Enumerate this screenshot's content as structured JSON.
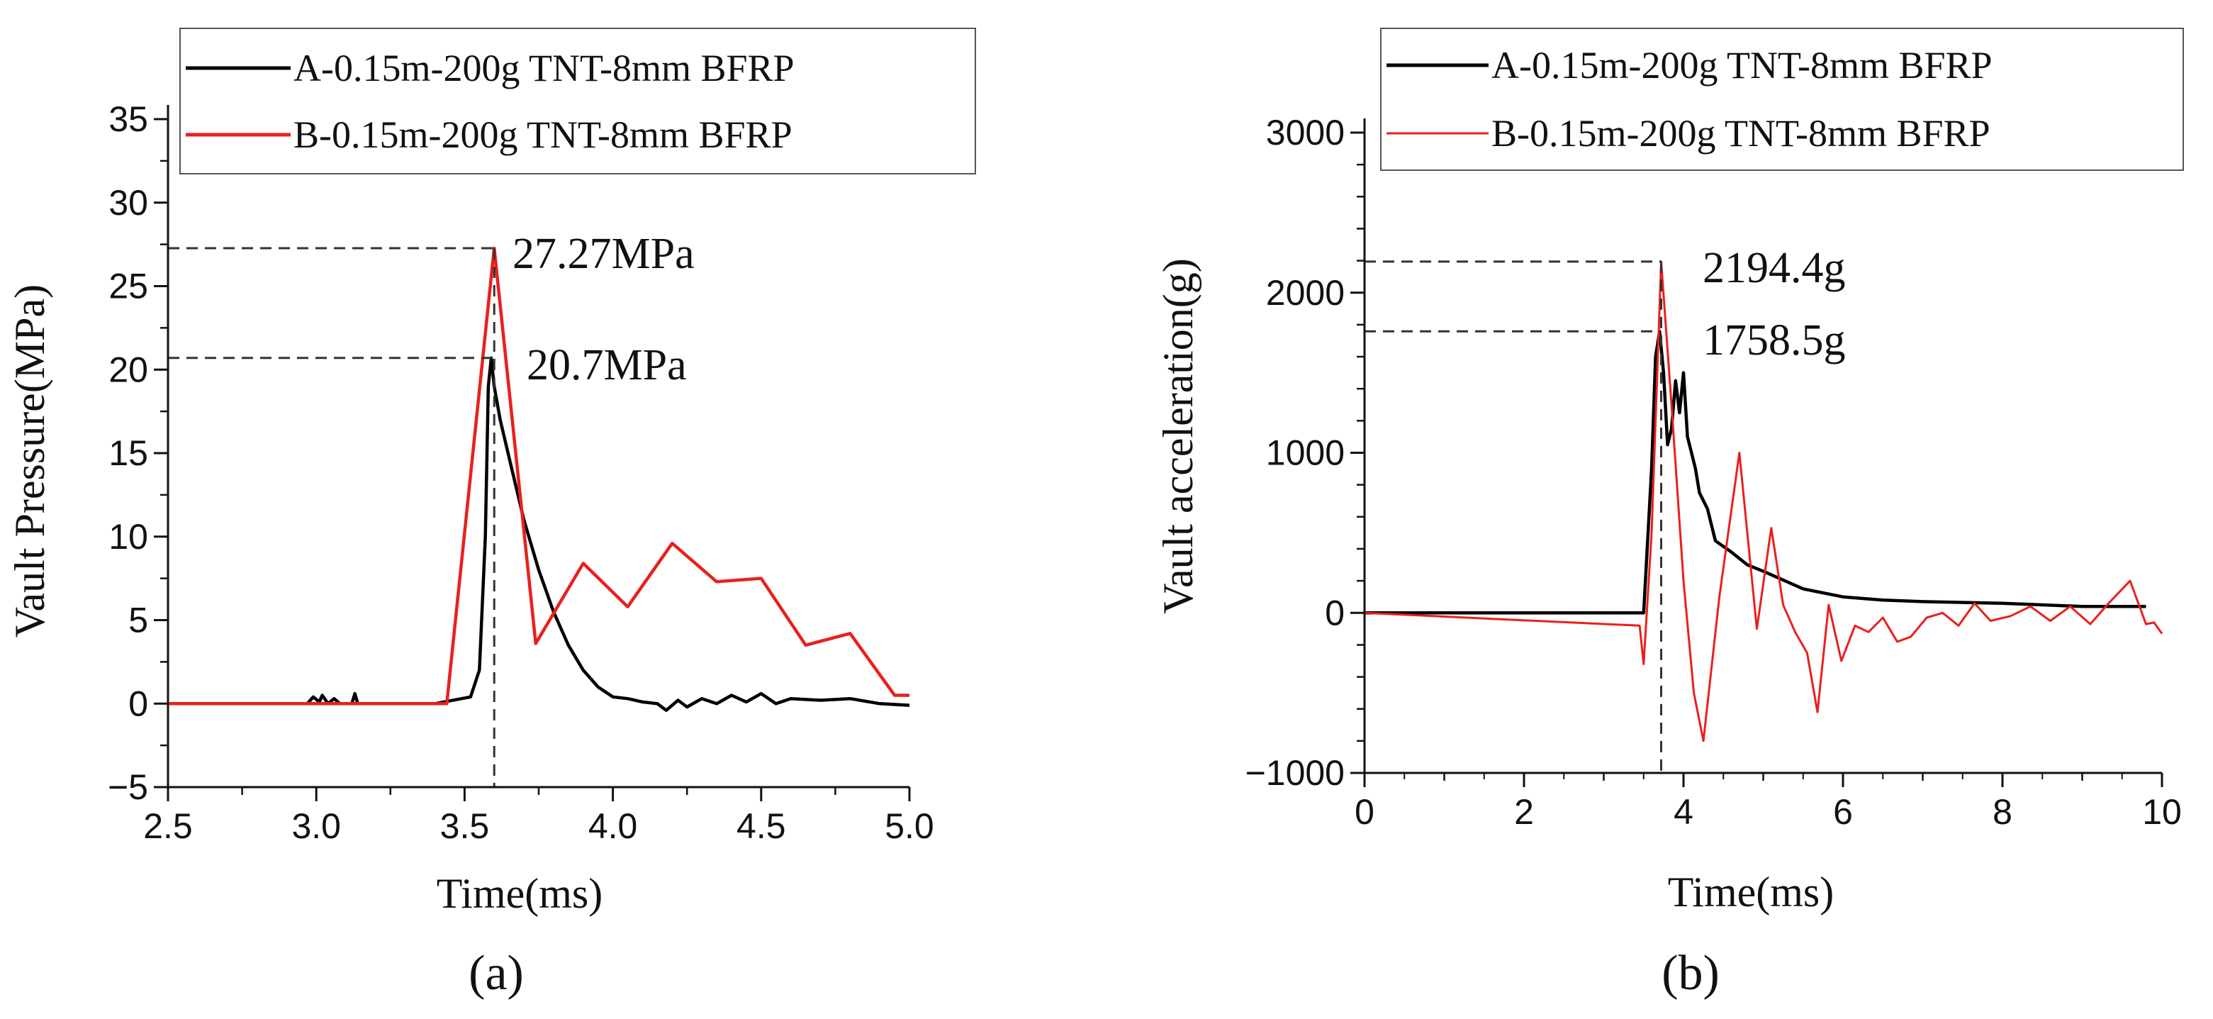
{
  "chart_data": [
    {
      "type": "line",
      "title": "",
      "caption": "(a)",
      "xlabel": "Time(ms)",
      "ylabel": "Vault Pressure(MPa)",
      "xlim": [
        2.5,
        5.0
      ],
      "ylim": [
        -5,
        35
      ],
      "xticks": [
        2.5,
        3.0,
        3.5,
        4.0,
        4.5,
        5.0
      ],
      "xtick_labels": [
        "2.5",
        "3.0",
        "3.5",
        "4.0",
        "4.5",
        "5.0"
      ],
      "yticks": [
        -5,
        0,
        5,
        10,
        15,
        20,
        25,
        30,
        35
      ],
      "ytick_labels": [
        "−5",
        "0",
        "5",
        "10",
        "15",
        "20",
        "25",
        "30",
        "35"
      ],
      "legend_position": "top",
      "series": [
        {
          "name": "A-0.15m-200g TNT-8mm BFRP",
          "color": "#000000",
          "x": [
            2.5,
            2.97,
            2.99,
            3.01,
            3.02,
            3.04,
            3.06,
            3.08,
            3.12,
            3.13,
            3.14,
            3.2,
            3.4,
            3.52,
            3.55,
            3.57,
            3.58,
            3.59,
            3.6,
            3.62,
            3.66,
            3.7,
            3.75,
            3.8,
            3.85,
            3.9,
            3.95,
            4.0,
            4.05,
            4.1,
            4.15,
            4.18,
            4.22,
            4.25,
            4.3,
            4.35,
            4.4,
            4.45,
            4.5,
            4.55,
            4.6,
            4.7,
            4.8,
            4.9,
            5.0
          ],
          "y": [
            0,
            0,
            0.4,
            0.1,
            0.5,
            0,
            0.3,
            0,
            0,
            0.6,
            0,
            0,
            0,
            0.4,
            2,
            10,
            19,
            20.7,
            19,
            17,
            14,
            11,
            8,
            5.5,
            3.5,
            2,
            1,
            0.4,
            0.3,
            0.1,
            0,
            -0.4,
            0.2,
            -0.2,
            0.3,
            0,
            0.5,
            0.1,
            0.6,
            0,
            0.3,
            0.2,
            0.3,
            0,
            -0.1
          ]
        },
        {
          "name": "B-0.15m-200g TNT-8mm BFRP",
          "color": "#e8201c",
          "x": [
            2.5,
            3.44,
            3.6,
            3.74,
            3.9,
            4.05,
            4.2,
            4.35,
            4.5,
            4.65,
            4.8,
            4.95,
            5.0
          ],
          "y": [
            0,
            0,
            27.27,
            3.6,
            8.4,
            5.8,
            9.6,
            7.3,
            7.5,
            3.5,
            4.2,
            0.5,
            0.5
          ]
        }
      ],
      "annotations": [
        {
          "text": "27.27MPa",
          "x": 3.6,
          "y": 27.27
        },
        {
          "text": "20.7MPa",
          "x": 3.6,
          "y": 20.7
        }
      ],
      "grid": false
    },
    {
      "type": "line",
      "title": "",
      "caption": "(b)",
      "xlabel": "Time(ms)",
      "ylabel": "Vault acceleration(g)",
      "xlim": [
        0,
        10
      ],
      "ylim": [
        -1000,
        3000
      ],
      "xticks": [
        0,
        2,
        4,
        6,
        8,
        10
      ],
      "xtick_labels": [
        "0",
        "2",
        "4",
        "6",
        "8",
        "10"
      ],
      "yticks": [
        -1000,
        0,
        1000,
        2000,
        3000
      ],
      "ytick_labels": [
        "−1000",
        "0",
        "1000",
        "2000",
        "3000"
      ],
      "legend_position": "top",
      "series": [
        {
          "name": "A-0.15m-200g TNT-8mm BFRP",
          "color": "#000000",
          "x": [
            0,
            3.5,
            3.6,
            3.65,
            3.7,
            3.75,
            3.8,
            3.85,
            3.9,
            3.95,
            4.0,
            4.05,
            4.1,
            4.15,
            4.2,
            4.3,
            4.4,
            4.6,
            4.8,
            5.0,
            5.5,
            6.0,
            6.5,
            7.0,
            8.0,
            9.0,
            9.8
          ],
          "y": [
            0,
            0,
            900,
            1600,
            1758.5,
            1500,
            1050,
            1150,
            1450,
            1250,
            1500,
            1100,
            1000,
            900,
            750,
            650,
            450,
            380,
            300,
            260,
            150,
            100,
            80,
            70,
            60,
            40,
            40
          ]
        },
        {
          "name": "B-0.15m-200g TNT-8mm BFRP",
          "color": "#e8201c",
          "x": [
            0,
            3.45,
            3.5,
            3.6,
            3.72,
            3.85,
            4.0,
            4.13,
            4.25,
            4.45,
            4.7,
            4.92,
            5.1,
            5.25,
            5.4,
            5.55,
            5.68,
            5.82,
            5.98,
            6.15,
            6.32,
            6.5,
            6.68,
            6.85,
            7.05,
            7.25,
            7.45,
            7.65,
            7.85,
            8.1,
            8.35,
            8.6,
            8.85,
            9.1,
            9.35,
            9.6,
            9.8,
            9.9,
            10.0
          ],
          "y": [
            0,
            -80,
            -320,
            500,
            2194.4,
            1300,
            200,
            -500,
            -800,
            100,
            1000,
            -100,
            530,
            50,
            -120,
            -250,
            -620,
            50,
            -300,
            -80,
            -120,
            -30,
            -180,
            -150,
            -30,
            0,
            -80,
            60,
            -50,
            -20,
            40,
            -50,
            40,
            -70,
            70,
            200,
            -70,
            -60,
            -130
          ]
        }
      ],
      "annotations": [
        {
          "text": "2194.4g",
          "x": 3.72,
          "y": 2194.4
        },
        {
          "text": "1758.5g",
          "x": 3.7,
          "y": 1758.5
        }
      ],
      "grid": false
    }
  ]
}
